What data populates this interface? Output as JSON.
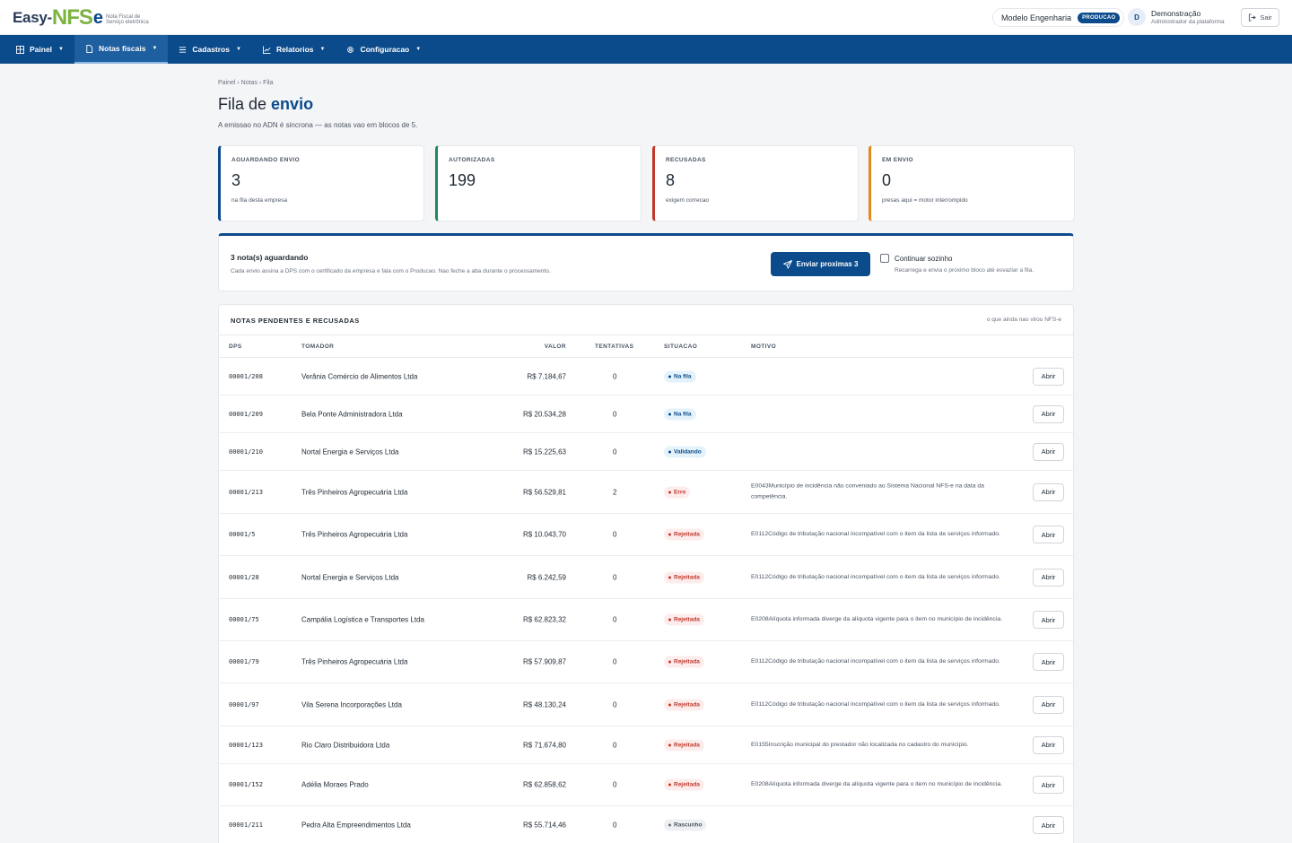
{
  "header": {
    "logo_easy": "Easy-",
    "logo_nfs": "NFS",
    "logo_e": "e",
    "logo_sub": "Nota Fiscal de Serviço eletrônica",
    "company": "Modelo Engenharia",
    "env_badge": "PRODUCAO",
    "avatar_initial": "D",
    "user_name": "Demonstração",
    "user_role": "Administrador da plataforma",
    "logout_label": "Sair"
  },
  "nav": [
    {
      "label": "Painel",
      "icon": "dashboard-icon"
    },
    {
      "label": "Notas fiscais",
      "icon": "document-icon"
    },
    {
      "label": "Cadastros",
      "icon": "list-icon"
    },
    {
      "label": "Relatorios",
      "icon": "chart-icon"
    },
    {
      "label": "Configuracao",
      "icon": "gear-icon"
    }
  ],
  "breadcrumb": "Painel › Notas › Fila",
  "title": {
    "prefix": "Fila de",
    "highlight": "envio"
  },
  "subtitle": "A emissao no ADN é sincrona — as notas vao em blocos de 5.",
  "stats": [
    {
      "label": "AGUARDANDO ENVIO",
      "value": "3",
      "note": "na fila desta empresa",
      "color": "#0b4a8b"
    },
    {
      "label": "AUTORIZADAS",
      "value": "199",
      "note": "",
      "color": "#1e8a5a"
    },
    {
      "label": "RECUSADAS",
      "value": "8",
      "note": "exigem correcao",
      "color": "#c0392b"
    },
    {
      "label": "EM ENVIO",
      "value": "0",
      "note": "presas aqui = motor interrompido",
      "color": "#e08a1e"
    }
  ],
  "action": {
    "title": "3 nota(s) aguardando",
    "desc": "Cada envio assina a DPS com o certificado da empresa e fala com o Producao. Nao feche a aba durante o processamento.",
    "send_label": "Enviar proximas 3",
    "checkbox_label": "Continuar sozinho",
    "checkbox_desc": "Recarrega e envia o proximo bloco até esvaziar a fila."
  },
  "table": {
    "title": "NOTAS PENDENTES E RECUSADAS",
    "aside": "o que ainda nao virou NFS-e",
    "headers": {
      "dps": "DPS",
      "tomador": "TOMADOR",
      "valor": "VALOR",
      "tentativas": "TENTATIVAS",
      "situacao": "SITUACAO",
      "motivo": "MOTIVO"
    },
    "open_label": "Abrir",
    "rows": [
      {
        "dps": "00001/208",
        "tomador": "Verânia Comércio de Alimentos Ltda",
        "valor": "R$ 7.184,67",
        "tentativas": "0",
        "situacao": "Na fila",
        "kind": "fila",
        "motivo": ""
      },
      {
        "dps": "00001/209",
        "tomador": "Bela Ponte Administradora Ltda",
        "valor": "R$ 20.534,28",
        "tentativas": "0",
        "situacao": "Na fila",
        "kind": "fila",
        "motivo": ""
      },
      {
        "dps": "00001/210",
        "tomador": "Nortal Energia e Serviços Ltda",
        "valor": "R$ 15.225,63",
        "tentativas": "0",
        "situacao": "Validando",
        "kind": "fila",
        "motivo": ""
      },
      {
        "dps": "00001/213",
        "tomador": "Três Pinheiros Agropecuária Ltda",
        "valor": "R$ 56.529,81",
        "tentativas": "2",
        "situacao": "Erro",
        "kind": "erro",
        "motivo": "E0043Município de incidência não conveniado ao Sistema Nacional NFS-e na data da competência."
      },
      {
        "dps": "00001/5",
        "tomador": "Três Pinheiros Agropecuária Ltda",
        "valor": "R$ 10.043,70",
        "tentativas": "0",
        "situacao": "Rejeitada",
        "kind": "erro",
        "motivo": "E0112Código de tributação nacional incompatível com o item da lista de serviços informado."
      },
      {
        "dps": "00001/28",
        "tomador": "Nortal Energia e Serviços Ltda",
        "valor": "R$ 6.242,59",
        "tentativas": "0",
        "situacao": "Rejeitada",
        "kind": "erro",
        "motivo": "E0112Código de tributação nacional incompatível com o item da lista de serviços informado."
      },
      {
        "dps": "00001/75",
        "tomador": "Campália Logística e Transportes Ltda",
        "valor": "R$ 62.823,32",
        "tentativas": "0",
        "situacao": "Rejeitada",
        "kind": "erro",
        "motivo": "E0208Alíquota informada diverge da alíquota vigente para o item no município de incidência."
      },
      {
        "dps": "00001/79",
        "tomador": "Três Pinheiros Agropecuária Ltda",
        "valor": "R$ 57.909,87",
        "tentativas": "0",
        "situacao": "Rejeitada",
        "kind": "erro",
        "motivo": "E0112Código de tributação nacional incompatível com o item da lista de serviços informado."
      },
      {
        "dps": "00001/97",
        "tomador": "Vila Serena Incorporações Ltda",
        "valor": "R$ 48.130,24",
        "tentativas": "0",
        "situacao": "Rejeitada",
        "kind": "erro",
        "motivo": "E0112Código de tributação nacional incompatível com o item da lista de serviços informado."
      },
      {
        "dps": "00001/123",
        "tomador": "Rio Claro Distribuidora Ltda",
        "valor": "R$ 71.674,80",
        "tentativas": "0",
        "situacao": "Rejeitada",
        "kind": "erro",
        "motivo": "E0155Inscrição municipal do prestador não localizada no cadastro do município."
      },
      {
        "dps": "00001/152",
        "tomador": "Adélia Moraes Prado",
        "valor": "R$ 62.858,62",
        "tentativas": "0",
        "situacao": "Rejeitada",
        "kind": "erro",
        "motivo": "E0208Alíquota informada diverge da alíquota vigente para o item no município de incidência."
      },
      {
        "dps": "00001/211",
        "tomador": "Pedra Alta Empreendimentos Ltda",
        "valor": "R$ 55.714,46",
        "tentativas": "0",
        "situacao": "Rascunho",
        "kind": "rasc",
        "motivo": ""
      }
    ]
  }
}
